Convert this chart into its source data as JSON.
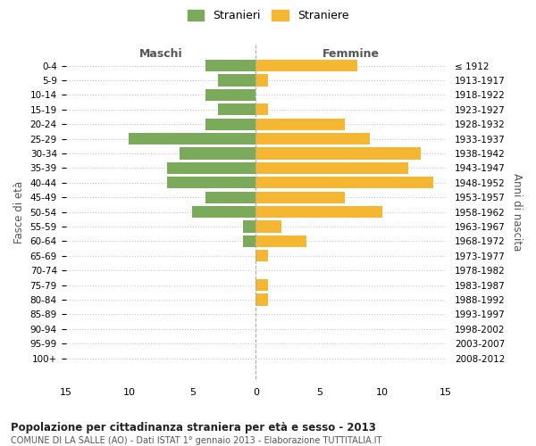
{
  "age_groups": [
    "0-4",
    "5-9",
    "10-14",
    "15-19",
    "20-24",
    "25-29",
    "30-34",
    "35-39",
    "40-44",
    "45-49",
    "50-54",
    "55-59",
    "60-64",
    "65-69",
    "70-74",
    "75-79",
    "80-84",
    "85-89",
    "90-94",
    "95-99",
    "100+"
  ],
  "birth_years": [
    "2008-2012",
    "2003-2007",
    "1998-2002",
    "1993-1997",
    "1988-1992",
    "1983-1987",
    "1978-1982",
    "1973-1977",
    "1968-1972",
    "1963-1967",
    "1958-1962",
    "1953-1957",
    "1948-1952",
    "1943-1947",
    "1938-1942",
    "1933-1937",
    "1928-1932",
    "1923-1927",
    "1918-1922",
    "1913-1917",
    "≤ 1912"
  ],
  "maschi": [
    4,
    3,
    4,
    3,
    4,
    10,
    6,
    7,
    7,
    4,
    5,
    1,
    1,
    0,
    0,
    0,
    0,
    0,
    0,
    0,
    0
  ],
  "femmine": [
    8,
    1,
    0,
    1,
    7,
    9,
    13,
    12,
    14,
    7,
    10,
    2,
    4,
    1,
    0,
    1,
    1,
    0,
    0,
    0,
    0
  ],
  "maschi_color": "#7aaa5a",
  "femmine_color": "#f5b731",
  "background_color": "#ffffff",
  "grid_color": "#cccccc",
  "title": "Popolazione per cittadinanza straniera per età e sesso - 2013",
  "subtitle": "COMUNE DI LA SALLE (AO) - Dati ISTAT 1° gennaio 2013 - Elaborazione TUTTITALIA.IT",
  "ylabel_left": "Fasce di età",
  "ylabel_right": "Anni di nascita",
  "xlabel_left": "Maschi",
  "xlabel_right": "Femmine",
  "legend_maschi": "Stranieri",
  "legend_femmine": "Straniere",
  "xlim": 15
}
